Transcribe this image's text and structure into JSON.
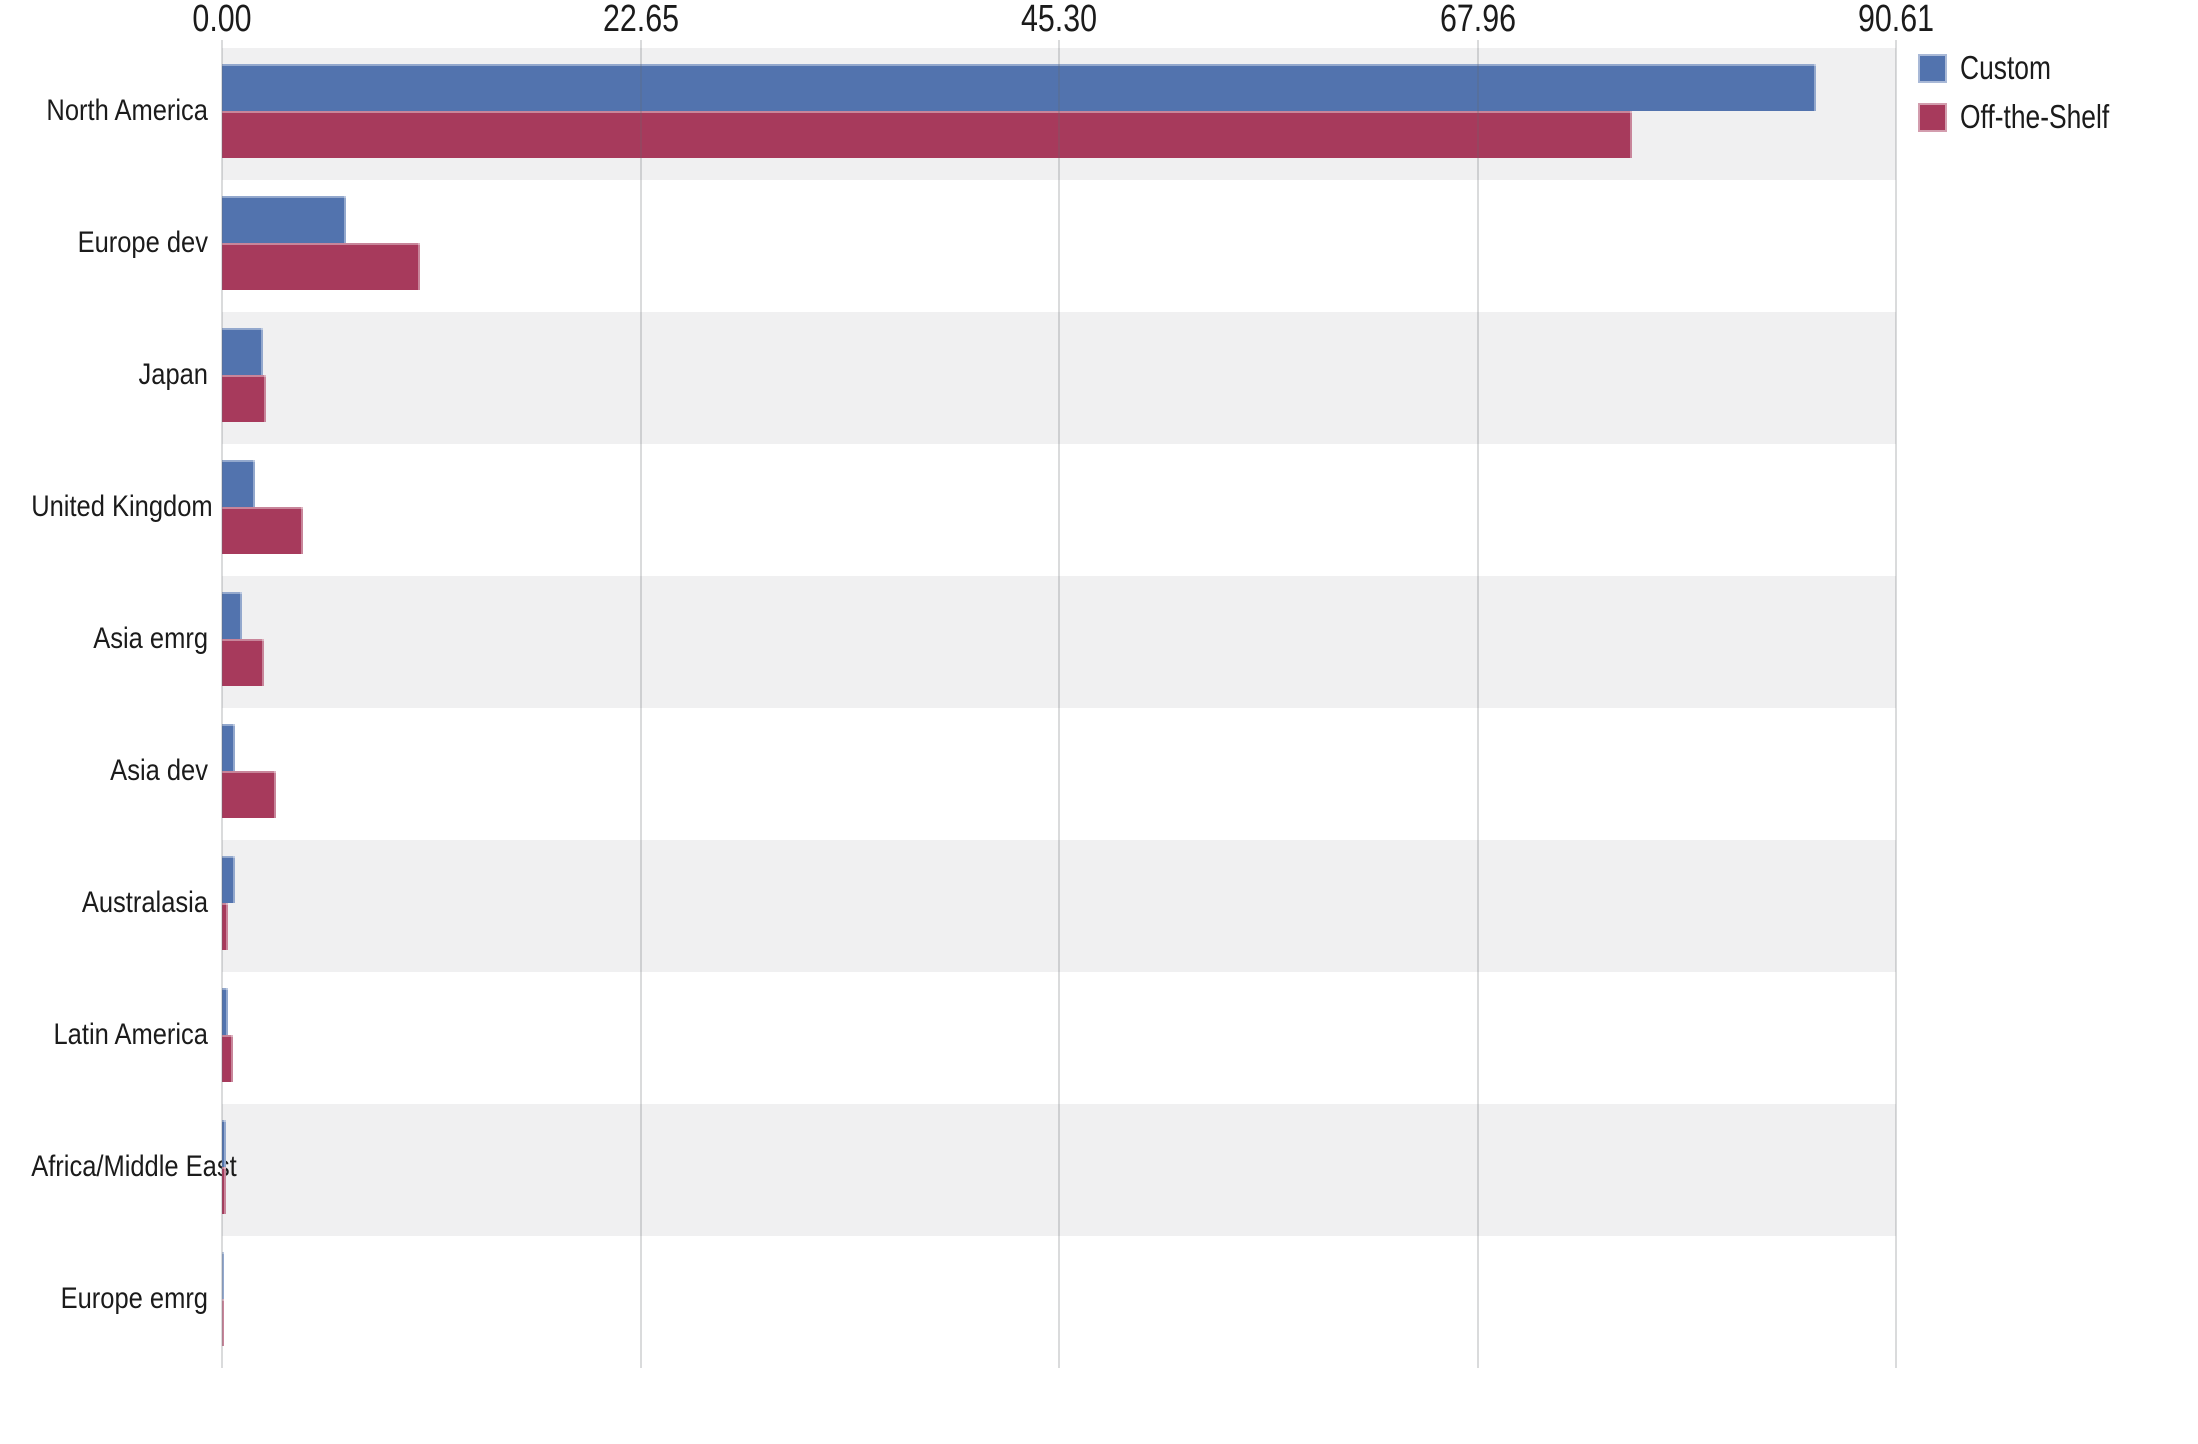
{
  "chart_data": {
    "type": "bar",
    "orientation": "horizontal",
    "title": "",
    "xlabel": "",
    "ylabel": "",
    "xlim": [
      0,
      90.61
    ],
    "x_ticks": [
      "0.00",
      "22.65",
      "45.30",
      "67.96",
      "90.61"
    ],
    "grid": true,
    "legend_position": "top-right",
    "row_stripe_colors": [
      "#F0F0F1",
      "#FFFFFF"
    ],
    "categories": [
      "North America",
      "Europe dev",
      "Japan",
      "United Kingdom",
      "Asia emrg",
      "Asia dev",
      "Australasia",
      "Latin America",
      "Africa/Middle East",
      "Europe emrg"
    ],
    "series": [
      {
        "name": "Custom",
        "color": "#5273AE",
        "values": [
          86.3,
          6.7,
          2.2,
          1.8,
          1.1,
          0.7,
          0.7,
          0.3,
          0.2,
          0.1
        ]
      },
      {
        "name": "Off-the-Shelf",
        "color": "#A73A5C",
        "values": [
          76.3,
          10.7,
          2.4,
          4.4,
          2.3,
          2.9,
          0.3,
          0.6,
          0.2,
          0.1
        ]
      }
    ],
    "colors": {
      "grid_line": "#D3D5D7",
      "text": "#1B1B1B",
      "background": "#FFFFFF"
    }
  }
}
